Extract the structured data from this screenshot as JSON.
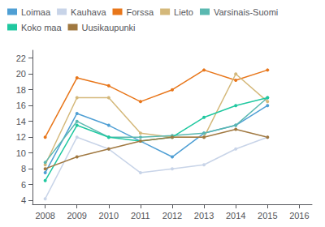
{
  "chart_data": {
    "type": "line",
    "x": [
      2008,
      2009,
      2010,
      2011,
      2012,
      2013,
      2014,
      2015
    ],
    "series": [
      {
        "name": "Loimaa",
        "color": "#4f9fd4",
        "values": [
          7.5,
          15.0,
          13.5,
          11.5,
          9.5,
          12.5,
          13.5,
          16.0
        ]
      },
      {
        "name": "Kauhava",
        "color": "#c8d4e8",
        "values": [
          4.2,
          12.0,
          10.5,
          7.5,
          8.0,
          8.5,
          10.5,
          12.0
        ]
      },
      {
        "name": "Forssa",
        "color": "#e8761a",
        "values": [
          12.0,
          19.5,
          18.5,
          16.5,
          18.0,
          20.5,
          19.2,
          20.5
        ]
      },
      {
        "name": "Lieto",
        "color": "#d4b87a",
        "values": [
          8.5,
          17.0,
          17.0,
          12.5,
          12.0,
          12.0,
          20.0,
          16.5
        ]
      },
      {
        "name": "Varsinais-Suomi",
        "color": "#5ab8b0",
        "values": [
          8.8,
          14.0,
          12.0,
          12.0,
          12.2,
          12.5,
          13.5,
          17.0
        ]
      },
      {
        "name": "Koko maa",
        "color": "#20c8a0",
        "values": [
          6.5,
          13.5,
          12.0,
          11.5,
          12.0,
          14.5,
          16.0,
          17.0
        ]
      },
      {
        "name": "Uusikaupunki",
        "color": "#a07840",
        "values": [
          8.0,
          9.5,
          10.5,
          11.5,
          12.0,
          12.0,
          13.0,
          12.0
        ]
      }
    ],
    "xlim": [
      2007.6,
      2016.4
    ],
    "xticks": [
      2008,
      2009,
      2010,
      2011,
      2012,
      2013,
      2014,
      2015,
      2016
    ],
    "ylim": [
      3.5,
      23
    ],
    "yticks": [
      4,
      6,
      8,
      10,
      12,
      14,
      16,
      18,
      20,
      22
    ],
    "grid": false,
    "legend": "upper left",
    "marker": "circle"
  }
}
